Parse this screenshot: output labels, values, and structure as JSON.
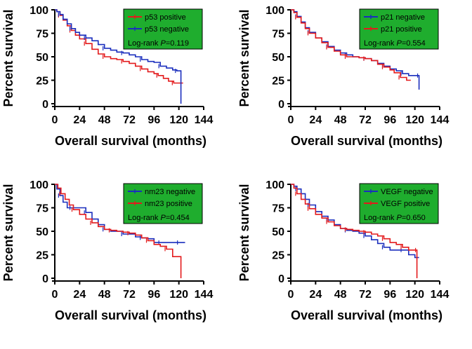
{
  "chart_data": [
    {
      "type": "line",
      "subtype": "kaplan-meier",
      "xlabel": "Overall survival (months)",
      "ylabel": "Percent survival",
      "xticks": [
        0,
        24,
        48,
        72,
        96,
        120,
        144
      ],
      "yticks": [
        0,
        25,
        50,
        75,
        100
      ],
      "xlim": [
        0,
        144
      ],
      "ylim": [
        0,
        100
      ],
      "legend_position": "top-right",
      "legend_bg": "#1fad2e",
      "logrank_label": "Log-rank ",
      "p_label": "P",
      "p_value": "=0.119",
      "series": [
        {
          "name": "p53 positive",
          "color": "#e31a1c",
          "x": [
            0,
            2,
            5,
            8,
            12,
            16,
            20,
            24,
            30,
            36,
            42,
            48,
            54,
            60,
            66,
            72,
            78,
            84,
            90,
            96,
            100,
            105,
            110,
            115,
            120,
            124
          ],
          "y": [
            100,
            98,
            94,
            89,
            83,
            78,
            73,
            69,
            64,
            58,
            53,
            50,
            48,
            47,
            45,
            43,
            40,
            37,
            34,
            32,
            30,
            27,
            24,
            22,
            22,
            22
          ]
        },
        {
          "name": "p53 negative",
          "color": "#1a2ebd",
          "x": [
            0,
            2,
            5,
            8,
            12,
            16,
            20,
            24,
            30,
            36,
            42,
            48,
            54,
            60,
            66,
            72,
            78,
            84,
            90,
            96,
            102,
            108,
            114,
            118,
            122,
            122
          ],
          "y": [
            100,
            98,
            95,
            90,
            85,
            80,
            76,
            73,
            70,
            67,
            63,
            59,
            57,
            55,
            54,
            52,
            50,
            47,
            45,
            44,
            40,
            38,
            36,
            35,
            35,
            0
          ]
        }
      ]
    },
    {
      "type": "line",
      "subtype": "kaplan-meier",
      "xlabel": "Overall survival (months)",
      "ylabel": "Percent survival",
      "xticks": [
        0,
        24,
        48,
        72,
        96,
        120,
        144
      ],
      "yticks": [
        0,
        25,
        50,
        75,
        100
      ],
      "xlim": [
        0,
        144
      ],
      "ylim": [
        0,
        100
      ],
      "legend_position": "top-right",
      "legend_bg": "#1fad2e",
      "logrank_label": "Log-rank ",
      "p_label": "P",
      "p_value": "=0.554",
      "series": [
        {
          "name": "p21 negative",
          "color": "#1a2ebd",
          "x": [
            0,
            3,
            6,
            10,
            14,
            18,
            24,
            30,
            36,
            42,
            48,
            54,
            60,
            66,
            72,
            78,
            84,
            90,
            96,
            102,
            108,
            114,
            120,
            124,
            124
          ],
          "y": [
            100,
            98,
            93,
            87,
            81,
            76,
            70,
            66,
            61,
            57,
            54,
            52,
            50,
            49,
            48,
            46,
            43,
            40,
            37,
            35,
            32,
            30,
            30,
            30,
            15
          ]
        },
        {
          "name": "p21 positive",
          "color": "#e31a1c",
          "x": [
            0,
            3,
            6,
            10,
            14,
            18,
            24,
            30,
            36,
            42,
            48,
            54,
            60,
            66,
            72,
            78,
            84,
            90,
            96,
            100,
            106,
            112,
            116
          ],
          "y": [
            100,
            97,
            92,
            86,
            80,
            75,
            70,
            65,
            60,
            56,
            52,
            50,
            50,
            49,
            48,
            46,
            42,
            39,
            36,
            33,
            28,
            25,
            25
          ]
        }
      ]
    },
    {
      "type": "line",
      "subtype": "kaplan-meier",
      "xlabel": "Overall survival (months)",
      "ylabel": "Percent survival",
      "xticks": [
        0,
        24,
        48,
        72,
        96,
        120,
        144
      ],
      "yticks": [
        0,
        25,
        50,
        75,
        100
      ],
      "xlim": [
        0,
        144
      ],
      "ylim": [
        0,
        100
      ],
      "legend_position": "top-right",
      "legend_bg": "#1fad2e",
      "logrank_label": "Log-rank ",
      "p_label": "P",
      "p_value": "=0.454",
      "series": [
        {
          "name": "nm23 negative",
          "color": "#1a2ebd",
          "x": [
            0,
            2,
            5,
            8,
            12,
            16,
            20,
            24,
            30,
            36,
            42,
            48,
            54,
            60,
            66,
            72,
            78,
            84,
            90,
            96,
            102,
            108,
            114,
            120,
            126
          ],
          "y": [
            100,
            95,
            88,
            81,
            75,
            75,
            75,
            75,
            70,
            63,
            57,
            52,
            50,
            50,
            47,
            47,
            44,
            43,
            42,
            38,
            38,
            38,
            38,
            38,
            38
          ]
        },
        {
          "name": "nm23 positive",
          "color": "#e31a1c",
          "x": [
            0,
            3,
            6,
            10,
            14,
            18,
            24,
            30,
            36,
            42,
            48,
            54,
            60,
            66,
            72,
            78,
            84,
            90,
            96,
            102,
            108,
            114,
            120,
            122
          ],
          "y": [
            100,
            96,
            90,
            84,
            78,
            73,
            68,
            63,
            59,
            55,
            52,
            51,
            50,
            49,
            48,
            46,
            43,
            40,
            36,
            34,
            31,
            23,
            23,
            0
          ]
        }
      ]
    },
    {
      "type": "line",
      "subtype": "kaplan-meier",
      "xlabel": "Overall survival (months)",
      "ylabel": "Percent survival",
      "xticks": [
        0,
        24,
        48,
        72,
        96,
        120,
        144
      ],
      "yticks": [
        0,
        25,
        50,
        75,
        100
      ],
      "xlim": [
        0,
        144
      ],
      "ylim": [
        0,
        100
      ],
      "legend_position": "top-right",
      "legend_bg": "#1fad2e",
      "logrank_label": "Log-rank ",
      "p_label": "P",
      "p_value": "=0.650",
      "series": [
        {
          "name": "VEGF negative",
          "color": "#1a2ebd",
          "x": [
            0,
            3,
            6,
            10,
            14,
            18,
            24,
            30,
            36,
            42,
            48,
            54,
            60,
            66,
            72,
            78,
            84,
            90,
            96,
            102,
            108,
            114,
            120,
            124
          ],
          "y": [
            100,
            98,
            95,
            90,
            84,
            78,
            71,
            66,
            62,
            57,
            53,
            51,
            50,
            48,
            45,
            41,
            37,
            33,
            30,
            30,
            30,
            25,
            22,
            22
          ]
        },
        {
          "name": "VEGF positive",
          "color": "#e31a1c",
          "x": [
            0,
            3,
            6,
            10,
            14,
            18,
            24,
            30,
            36,
            42,
            48,
            54,
            60,
            66,
            72,
            78,
            84,
            90,
            96,
            102,
            108,
            114,
            120,
            122,
            122
          ],
          "y": [
            100,
            96,
            90,
            84,
            79,
            74,
            68,
            64,
            60,
            56,
            53,
            52,
            51,
            50,
            49,
            47,
            45,
            42,
            38,
            36,
            33,
            30,
            30,
            30,
            0
          ]
        }
      ]
    }
  ]
}
